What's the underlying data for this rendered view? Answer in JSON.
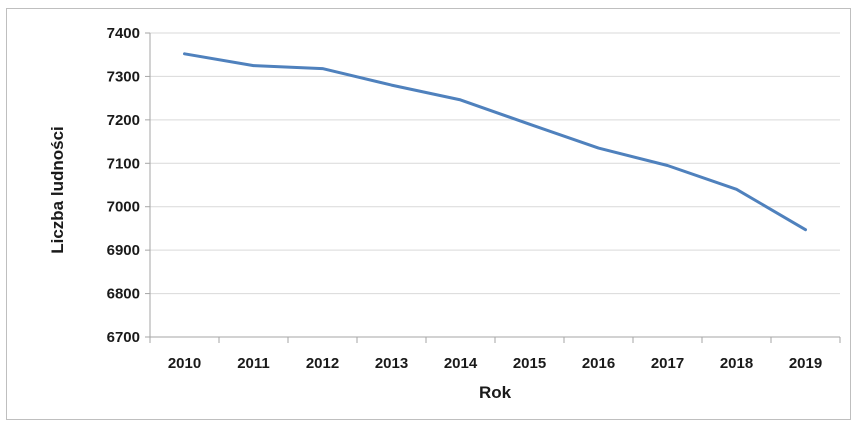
{
  "chart_data": {
    "type": "line",
    "xlabel": "Rok",
    "ylabel": "Liczba ludności",
    "x": [
      "2010",
      "2011",
      "2012",
      "2013",
      "2014",
      "2015",
      "2016",
      "2017",
      "2018",
      "2019"
    ],
    "series": [
      {
        "values": [
          7352,
          7325,
          7318,
          7280,
          7246,
          7190,
          7135,
          7095,
          7040,
          6947
        ]
      }
    ],
    "yticks": [
      6700,
      6800,
      6900,
      7000,
      7100,
      7200,
      7300,
      7400
    ],
    "ylim": [
      6700,
      7400
    ],
    "grid": true,
    "legend": "none",
    "colors": {
      "line": "#4f81bd",
      "grid": "#d9d9d9",
      "axis": "#a6a6a6"
    }
  }
}
